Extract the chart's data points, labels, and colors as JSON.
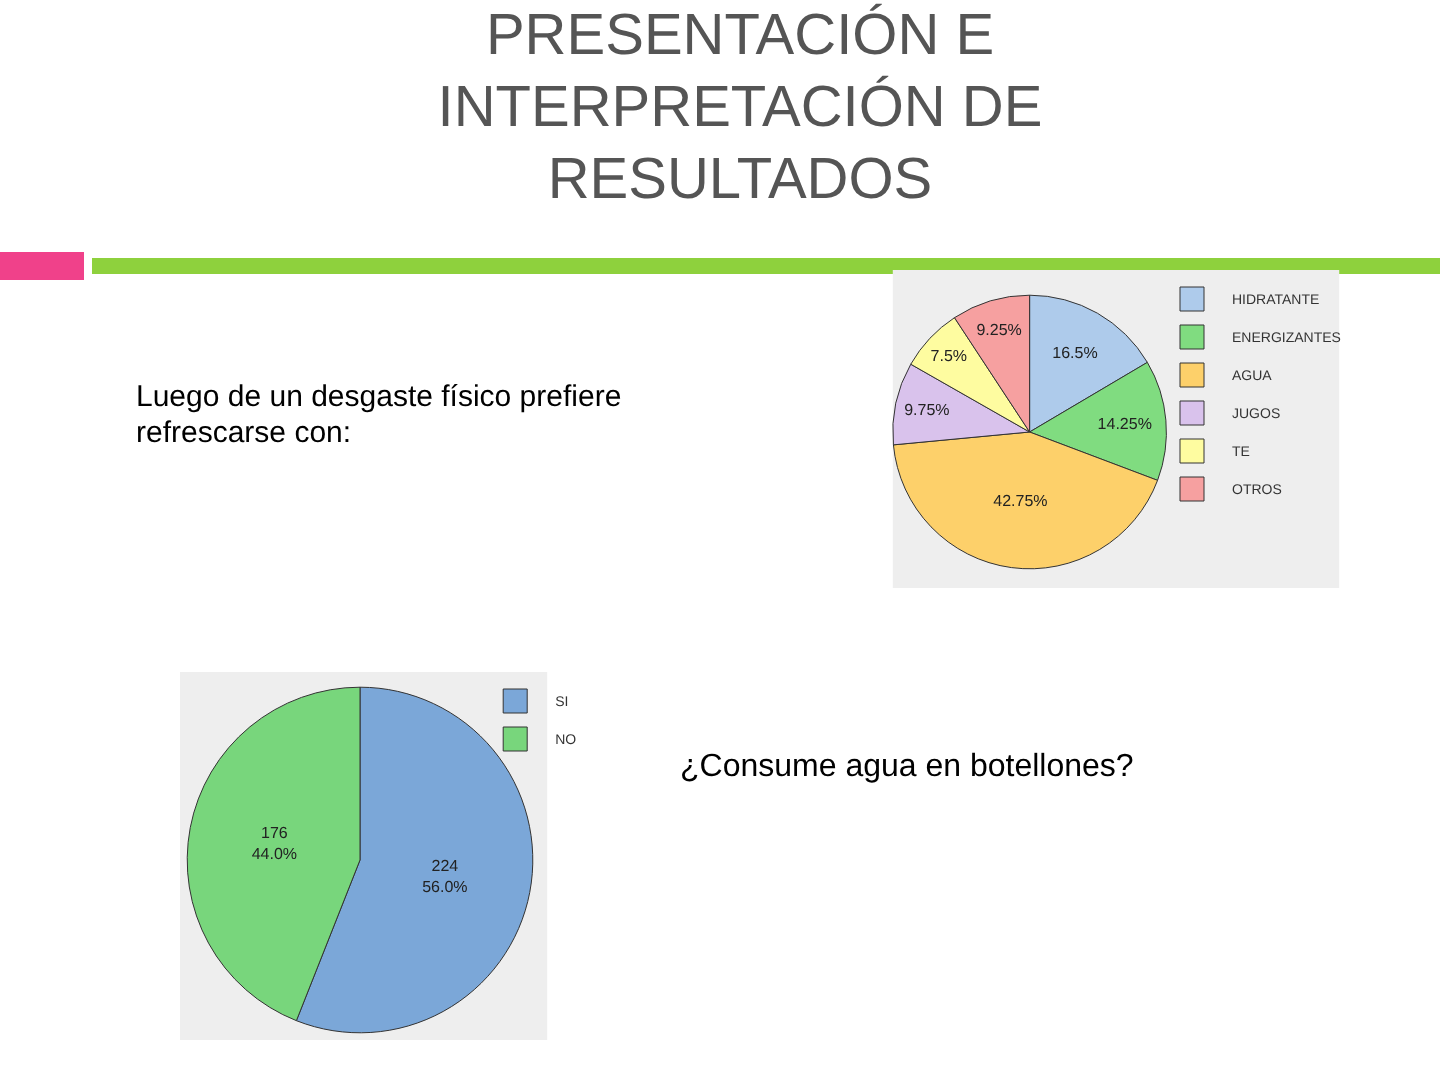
{
  "chart_data": [
    {
      "type": "pie",
      "title": "PRESENTACIÓN E INTERPRETACIÓN DE RESULTADOS",
      "subtitle": "Luego de un desgaste físico prefiere refrescarse con:",
      "categories": [
        "HIDRATANTE",
        "ENERGIZANTES",
        "AGUA",
        "JUGOS",
        "TE",
        "OTROS"
      ],
      "values": [
        16.5,
        14.25,
        42.75,
        9.75,
        7.5,
        9.25
      ],
      "colors": [
        "#aecbeb",
        "#80dc80",
        "#fdd06a",
        "#d9c2ec",
        "#fefca0",
        "#f6a0a0"
      ],
      "value_labels": [
        "16.5%",
        "14.25%",
        "42.75%",
        "9.75%",
        "7.5%",
        "9.25%"
      ],
      "legend": "top right"
    },
    {
      "type": "pie",
      "title": "¿Consume agua en botellones?",
      "categories": [
        "SI",
        "NO"
      ],
      "values": [
        224,
        176
      ],
      "colors": [
        "#7ba7d8",
        "#78d67c"
      ],
      "value_labels": [
        "224\n56.0%",
        "176\n44.0%"
      ],
      "legend": "top right"
    }
  ]
}
